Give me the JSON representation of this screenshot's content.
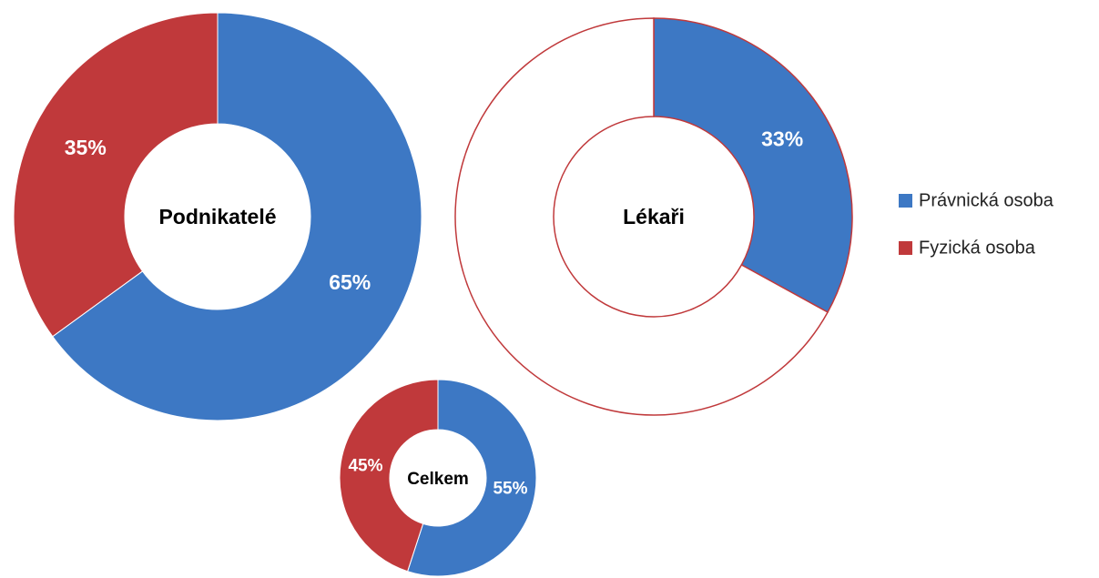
{
  "chart_data": [
    {
      "type": "donut",
      "title": "Podnikatelé",
      "values": [
        65,
        35
      ],
      "value_labels": [
        "65%",
        "35%"
      ],
      "colors": [
        "#3d78c4",
        "#c0393b"
      ],
      "outline": false
    },
    {
      "type": "donut",
      "title": "Lékaři",
      "values": [
        33,
        67
      ],
      "value_labels": [
        "33%",
        null
      ],
      "colors": [
        "#3d78c4",
        "#ffffff"
      ],
      "outline": true
    },
    {
      "type": "donut",
      "title": "Celkem",
      "values": [
        55,
        45
      ],
      "value_labels": [
        "55%",
        "45%"
      ],
      "colors": [
        "#3d78c4",
        "#c0393b"
      ],
      "outline": false
    }
  ],
  "legend": {
    "items": [
      {
        "name": "Právnická osoba",
        "color": "#3d78c4"
      },
      {
        "name": "Fyzická osoba",
        "color": "#c0393b"
      }
    ]
  }
}
